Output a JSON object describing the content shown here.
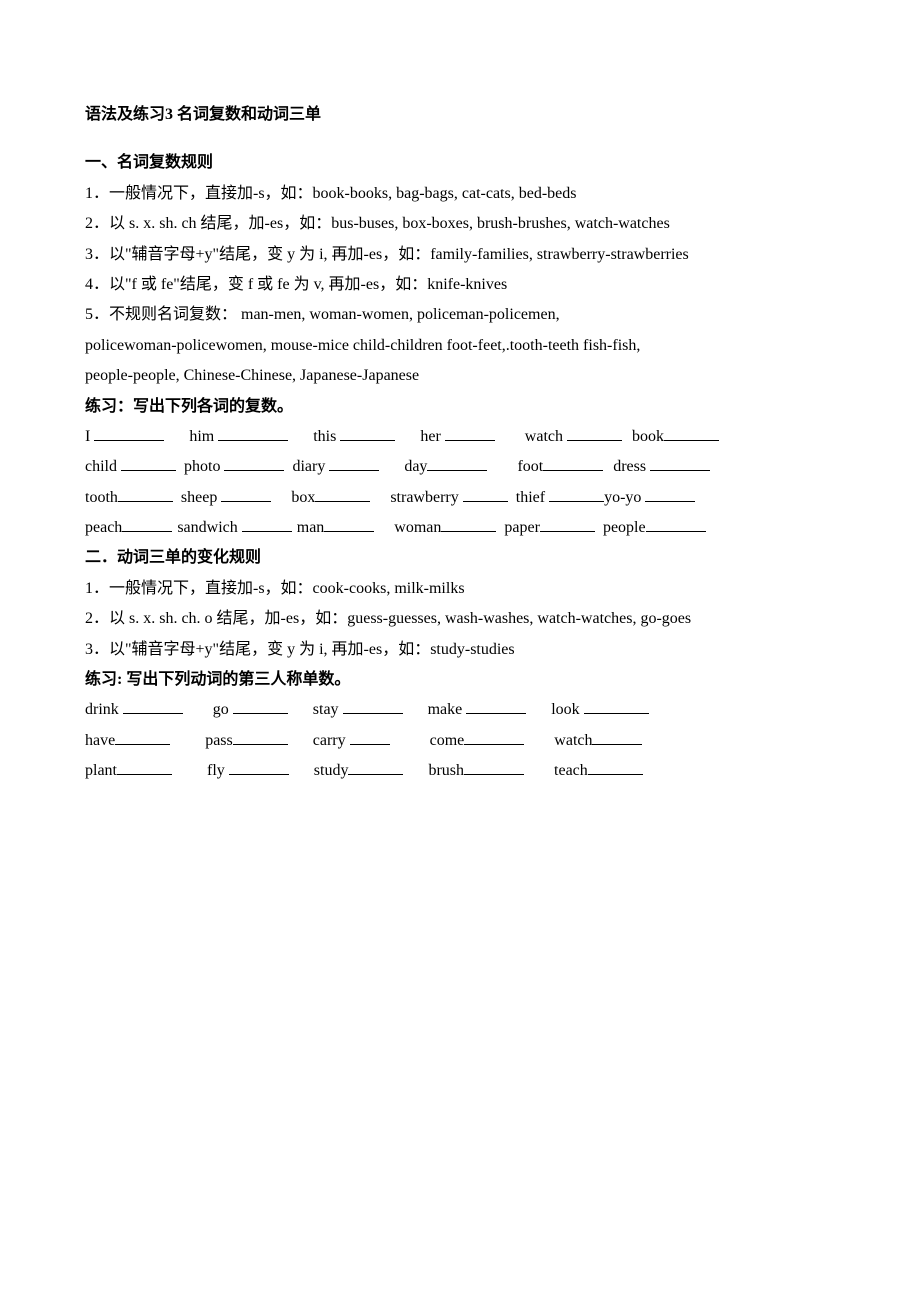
{
  "title": "语法及练习3 名词复数和动词三单",
  "section1": {
    "heading": "一、名词复数规则",
    "rules": [
      "1．一般情况下，直接加-s，如：book-books, bag-bags, cat-cats, bed-beds",
      "2．以 s. x. sh. ch 结尾，加-es，如：bus-buses, box-boxes, brush-brushes, watch-watches",
      "3．以\"辅音字母+y\"结尾，变 y 为 i, 再加-es，如：family-families, strawberry-strawberries",
      "4．以\"f 或 fe\"结尾，变 f 或 fe 为 v,  再加-es，如：knife-knives",
      "5．不规则名词复数：  man-men, woman-women, policeman-policemen,",
      "policewoman-policewomen, mouse-mice child-children foot-feet,.tooth-teeth fish-fish,",
      "people-people, Chinese-Chinese, Japanese-Japanese"
    ],
    "exercise_heading": "练习：写出下列各词的复数。",
    "words": {
      "r1": [
        "I",
        "him",
        "this",
        "her",
        "watch",
        "book"
      ],
      "r2": [
        "child",
        "photo",
        "diary",
        "day",
        "foot",
        "dress"
      ],
      "r3": [
        "tooth",
        "sheep",
        "box",
        "strawberry",
        "thief",
        "yo-yo"
      ],
      "r4": [
        "peach",
        "sandwich",
        "man",
        "woman",
        "paper",
        "people"
      ]
    }
  },
  "section2": {
    "heading": "二．动词三单的变化规则",
    "rules": [
      "1．一般情况下，直接加-s，如：cook-cooks, milk-milks",
      "2．以 s. x. sh. ch. o 结尾，加-es，如：guess-guesses, wash-washes, watch-watches, go-goes",
      "3．以\"辅音字母+y\"结尾，变 y 为 i,  再加-es，如：study-studies"
    ],
    "exercise_heading": "练习: 写出下列动词的第三人称单数。",
    "words": {
      "r1": [
        "drink",
        "go",
        "stay",
        "make",
        "look"
      ],
      "r2": [
        "have",
        "pass",
        "carry",
        "come",
        "watch"
      ],
      "r3": [
        "plant",
        "fly",
        "study",
        "brush",
        "teach"
      ]
    }
  }
}
